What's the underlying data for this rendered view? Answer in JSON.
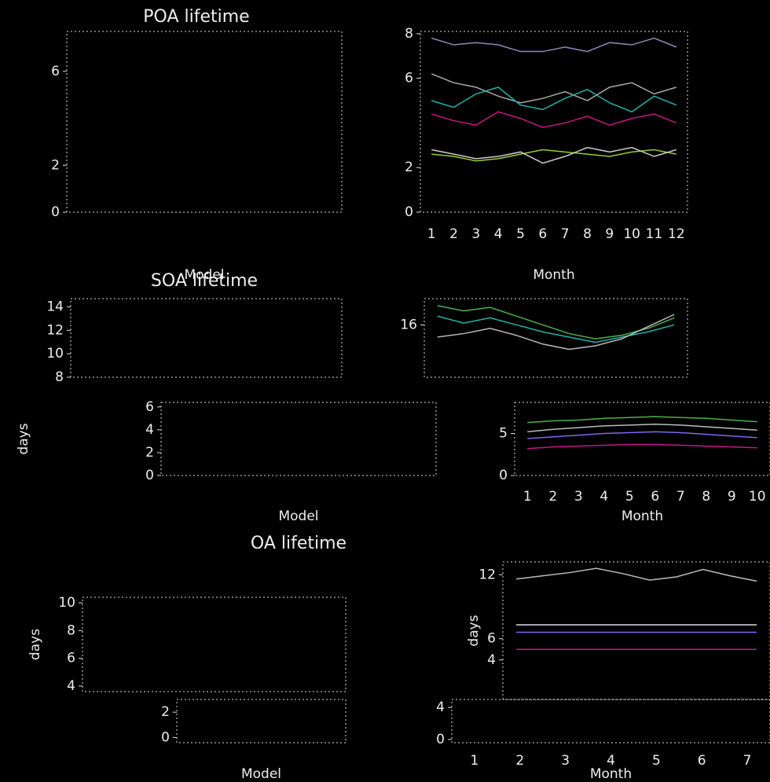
{
  "chart_data": [
    {
      "type": "line",
      "title": "POA lifetime",
      "x_label": "Model",
      "ylim": [
        0,
        7.7
      ],
      "yticks": [
        0,
        2,
        6
      ]
    },
    {
      "type": "line",
      "x_label": "Month",
      "categories": [
        "1",
        "2",
        "3",
        "4",
        "5",
        "6",
        "7",
        "8",
        "9",
        "10",
        "11",
        "12"
      ],
      "ylim": [
        0,
        8.1
      ],
      "yticks": [
        0,
        2,
        6,
        8
      ],
      "series": [
        {
          "color": "#8a8ab8",
          "values": [
            7.8,
            7.5,
            7.6,
            7.5,
            7.2,
            7.2,
            7.4,
            7.2,
            7.6,
            7.5,
            7.8,
            7.4
          ]
        },
        {
          "color": "#aaaaaa",
          "values": [
            6.2,
            5.8,
            5.6,
            5.2,
            4.9,
            5.1,
            5.4,
            5.0,
            5.6,
            5.8,
            5.3,
            5.6
          ]
        },
        {
          "color": "#20b2aa",
          "values": [
            5.0,
            4.7,
            5.3,
            5.6,
            4.8,
            4.6,
            5.1,
            5.5,
            4.9,
            4.5,
            5.2,
            4.8
          ]
        },
        {
          "color": "#c71585",
          "values": [
            4.4,
            4.1,
            3.9,
            4.5,
            4.2,
            3.8,
            4.0,
            4.3,
            3.9,
            4.2,
            4.4,
            4.0
          ]
        },
        {
          "color": "#9acd32",
          "values": [
            2.6,
            2.5,
            2.3,
            2.4,
            2.6,
            2.8,
            2.7,
            2.6,
            2.5,
            2.7,
            2.8,
            2.6
          ]
        },
        {
          "color": "#cccccc",
          "values": [
            2.8,
            2.6,
            2.4,
            2.5,
            2.7,
            2.2,
            2.5,
            2.9,
            2.7,
            2.9,
            2.5,
            2.8
          ]
        }
      ]
    },
    {
      "type": "line",
      "title": "SOA lifetime",
      "ylim": [
        8,
        14.7
      ],
      "yticks": [
        8,
        10,
        12,
        14
      ]
    },
    {
      "type": "line",
      "ylim": [
        13,
        17.5
      ],
      "yticks": [
        16
      ],
      "series": [
        {
          "color": "#4caf50",
          "values": [
            17.1,
            16.8,
            17.0,
            16.5,
            16.0,
            15.5,
            15.2,
            15.4,
            15.8,
            16.4
          ]
        },
        {
          "color": "#20b2aa",
          "values": [
            16.5,
            16.1,
            16.4,
            16.0,
            15.6,
            15.3,
            15.0,
            15.3,
            15.6,
            16.0
          ]
        },
        {
          "color": "#bbbbbb",
          "values": [
            15.3,
            15.5,
            15.8,
            15.4,
            14.9,
            14.6,
            14.8,
            15.2,
            15.9,
            16.6
          ]
        }
      ]
    },
    {
      "type": "line",
      "x_label": "Model",
      "y_label": "days",
      "ylim": [
        0,
        6.4
      ],
      "yticks": [
        0,
        2,
        4,
        6
      ]
    },
    {
      "type": "line",
      "x_label": "Month",
      "categories": [
        "1",
        "2",
        "3",
        "4",
        "5",
        "6",
        "7",
        "8",
        "9",
        "10"
      ],
      "ylim": [
        0,
        8.7
      ],
      "yticks": [
        0,
        5
      ],
      "series": [
        {
          "color": "#4caf50",
          "values": [
            6.3,
            6.5,
            6.6,
            6.8,
            6.9,
            7.0,
            6.9,
            6.8,
            6.6,
            6.4
          ]
        },
        {
          "color": "#bbbbbb",
          "values": [
            5.2,
            5.5,
            5.7,
            5.9,
            6.0,
            6.1,
            6.0,
            5.8,
            5.6,
            5.4
          ]
        },
        {
          "color": "#7b68ee",
          "values": [
            4.4,
            4.6,
            4.8,
            5.0,
            5.1,
            5.2,
            5.1,
            4.9,
            4.7,
            4.5
          ]
        },
        {
          "color": "#c71585",
          "values": [
            3.2,
            3.4,
            3.5,
            3.6,
            3.7,
            3.7,
            3.6,
            3.5,
            3.4,
            3.3
          ]
        }
      ]
    },
    {
      "type": "line",
      "title": "OA lifetime",
      "y_label": "days",
      "ylim": [
        3.6,
        10.4
      ],
      "yticks": [
        4,
        6,
        8,
        10
      ]
    },
    {
      "type": "line",
      "y_label": "days",
      "ylim": [
        0.3,
        13.2
      ],
      "yticks": [
        4,
        6,
        12
      ],
      "series": [
        {
          "color": "#bbbbbb",
          "values": [
            11.6,
            11.9,
            12.2,
            12.6,
            12.1,
            11.5,
            11.8,
            12.5,
            11.9,
            11.4
          ]
        },
        {
          "color": "#dddddd",
          "values": [
            7.3,
            7.3,
            7.3,
            7.3,
            7.3,
            7.3,
            7.3,
            7.3,
            7.3,
            7.3
          ]
        },
        {
          "color": "#7b68ee",
          "values": [
            6.6,
            6.6,
            6.6,
            6.6,
            6.6,
            6.6,
            6.6,
            6.6,
            6.6,
            6.6
          ]
        },
        {
          "color": "#c71585",
          "values": [
            5.0,
            5.0,
            5.0,
            5.0,
            5.0,
            5.0,
            5.0,
            5.0,
            5.0,
            5.0
          ]
        }
      ]
    },
    {
      "type": "line",
      "x_label": "Model",
      "ylim": [
        -0.4,
        3
      ],
      "yticks": [
        0,
        2
      ]
    },
    {
      "type": "line",
      "x_label": "Month",
      "categories": [
        "1",
        "2",
        "3",
        "4",
        "5",
        "6",
        "7"
      ],
      "ylim": [
        -0.4,
        5
      ],
      "yticks": [
        0,
        4
      ]
    }
  ]
}
